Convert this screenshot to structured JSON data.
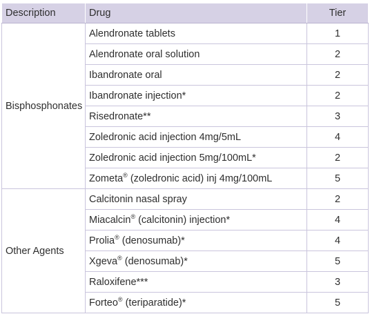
{
  "headers": {
    "description": "Description",
    "drug": "Drug",
    "tier": "Tier"
  },
  "groups": [
    {
      "description": "Bisphosphonates",
      "rows": [
        {
          "drug": "Alendronate tablets",
          "tier": "1"
        },
        {
          "drug": "Alendronate oral solution",
          "tier": "2"
        },
        {
          "drug": "Ibandronate oral",
          "tier": "2"
        },
        {
          "drug": "Ibandronate injection*",
          "tier": "2"
        },
        {
          "drug": "Risedronate**",
          "tier": "3"
        },
        {
          "drug": "Zoledronic acid injection 4mg/5mL",
          "tier": "4"
        },
        {
          "drug": "Zoledronic acid injection 5mg/100mL*",
          "tier": "2"
        },
        {
          "drug": "Zometa® (zoledronic acid) inj 4mg/100mL",
          "tier": "5"
        }
      ]
    },
    {
      "description": "Other Agents",
      "rows": [
        {
          "drug": "Calcitonin nasal spray",
          "tier": "2"
        },
        {
          "drug": "Miacalcin® (calcitonin) injection*",
          "tier": "4"
        },
        {
          "drug": "Prolia® (denosumab)*",
          "tier": "4"
        },
        {
          "drug": "Xgeva® (denosumab)*",
          "tier": "5"
        },
        {
          "drug": "Raloxifene***",
          "tier": "3"
        },
        {
          "drug": "Forteo® (teriparatide)*",
          "tier": "5"
        }
      ]
    }
  ]
}
